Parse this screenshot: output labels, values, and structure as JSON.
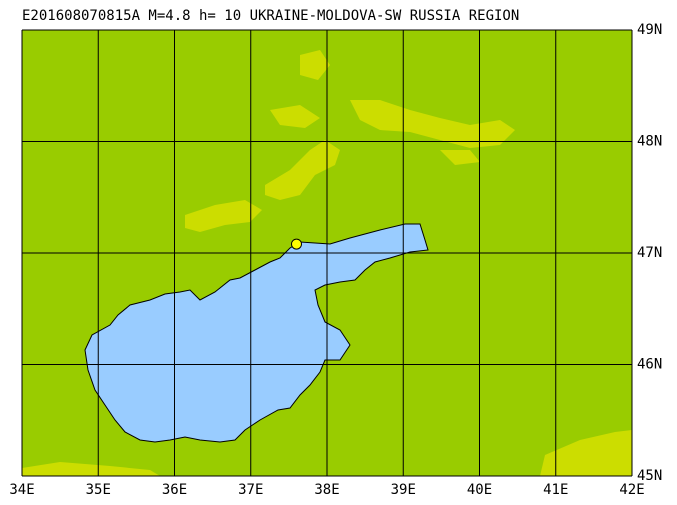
{
  "map": {
    "title": "E201608070815A M=4.8 h= 10 UKRAINE-MOLDOVA-SW RUSSIA REGION",
    "xlim": [
      34,
      42
    ],
    "ylim": [
      45,
      49
    ],
    "xticks": [
      {
        "value": 34,
        "label": "34E"
      },
      {
        "value": 35,
        "label": "35E"
      },
      {
        "value": 36,
        "label": "36E"
      },
      {
        "value": 37,
        "label": "37E"
      },
      {
        "value": 38,
        "label": "38E"
      },
      {
        "value": 39,
        "label": "39E"
      },
      {
        "value": 40,
        "label": "40E"
      },
      {
        "value": 41,
        "label": "41E"
      },
      {
        "value": 42,
        "label": "42E"
      }
    ],
    "yticks": [
      {
        "value": 45,
        "label": "45N"
      },
      {
        "value": 46,
        "label": "46N"
      },
      {
        "value": 47,
        "label": "47N"
      },
      {
        "value": 48,
        "label": "48N"
      },
      {
        "value": 49,
        "label": "49N"
      }
    ],
    "epicenter": {
      "lon": 37.6,
      "lat": 47.08
    }
  }
}
